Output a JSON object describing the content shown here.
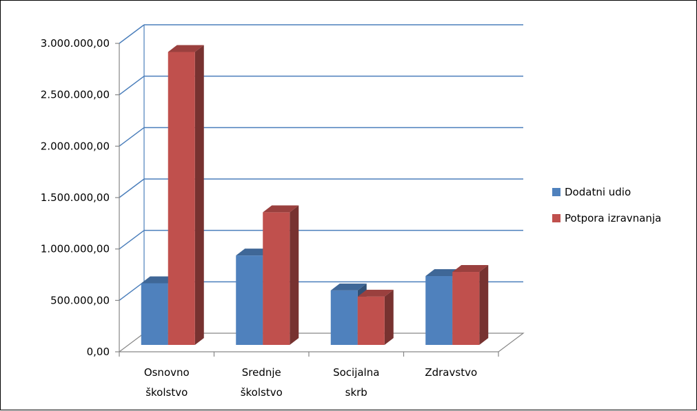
{
  "chart_data": {
    "type": "bar",
    "title": "",
    "xlabel": "",
    "ylabel": "",
    "categories": [
      [
        "Osnovno",
        "školstvo"
      ],
      [
        "Srednje",
        "školstvo"
      ],
      [
        "Socijalna",
        "skrb"
      ],
      [
        "Zdravstvo"
      ]
    ],
    "y_ticks": [
      "0,00",
      "500.000,00",
      "1.000.000,00",
      "1.500.000,00",
      "2.000.000,00",
      "2.500.000,00",
      "3.000.000,00"
    ],
    "ylim": [
      0,
      3000000
    ],
    "grid": true,
    "legend_position": "right",
    "series": [
      {
        "name": "Dodatni udio",
        "color": "#4F81BD",
        "values": [
          680000,
          950000,
          610000,
          750000
        ]
      },
      {
        "name": "Potpora izravnanja",
        "color": "#C0504D",
        "values": [
          2930000,
          1370000,
          550000,
          790000
        ]
      }
    ]
  }
}
